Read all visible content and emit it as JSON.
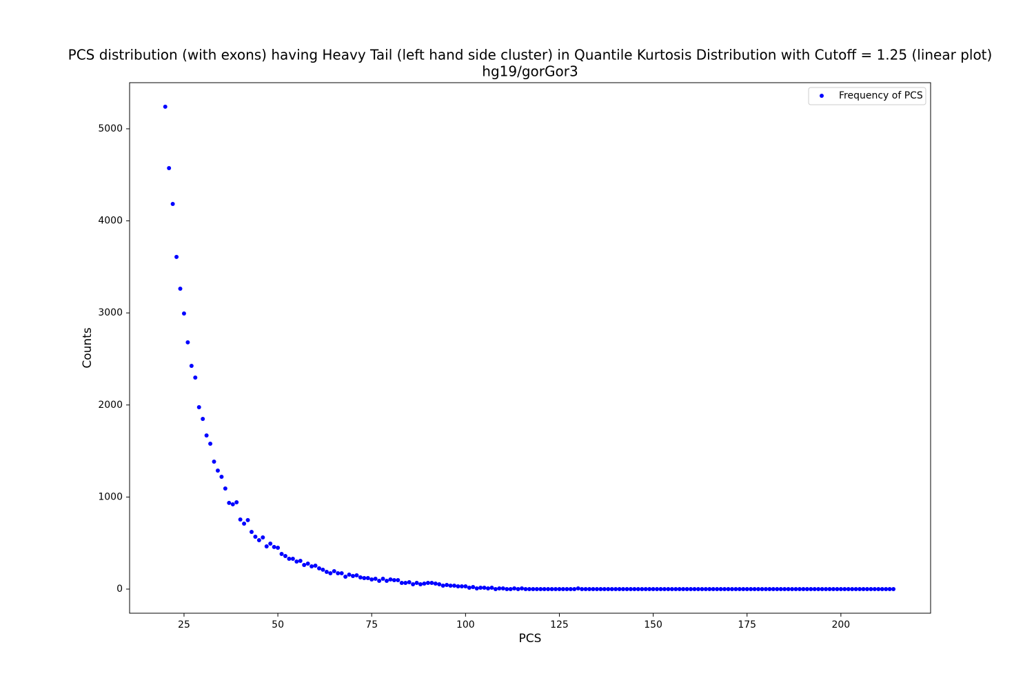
{
  "chart_data": {
    "type": "scatter",
    "title": "PCS distribution (with exons) having Heavy Tail (left hand side cluster) in Quantile Kurtosis Distribution with Cutoff = 1.25 (linear plot)",
    "subtitle": "hg19/gorGor3",
    "x_label": "PCS",
    "y_label": "Counts",
    "legend": "upper right",
    "series": [
      {
        "name": "Frequency of PCS",
        "color": "#0000ff",
        "x": [
          20,
          21,
          22,
          23,
          24,
          25,
          26,
          27,
          28,
          29,
          30,
          31,
          32,
          33,
          34,
          35,
          36,
          37,
          38,
          39,
          40,
          41,
          42,
          43,
          44,
          45,
          46,
          47,
          48,
          49,
          50,
          51,
          52,
          53,
          54,
          55,
          56,
          57,
          58,
          59,
          60,
          61,
          62,
          63,
          64,
          65,
          66,
          67,
          68,
          69,
          70,
          71,
          72,
          73,
          74,
          75,
          76,
          77,
          78,
          79,
          80,
          81,
          82,
          83,
          84,
          85,
          86,
          87,
          88,
          89,
          90,
          91,
          92,
          93,
          94,
          95,
          96,
          97,
          98,
          99,
          100,
          101,
          102,
          103,
          104,
          105,
          106,
          107,
          108,
          109,
          110,
          111,
          112,
          113,
          114,
          115,
          116,
          117,
          118,
          119,
          120,
          121,
          122,
          123,
          124,
          125,
          126,
          127,
          128,
          129,
          130,
          131,
          132,
          133,
          134,
          135,
          136,
          137,
          138,
          139,
          140,
          141,
          142,
          143,
          144,
          145,
          146,
          147,
          148,
          149,
          150,
          151,
          152,
          153,
          154,
          155,
          156,
          157,
          158,
          159,
          160,
          161,
          162,
          163,
          164,
          165,
          166,
          167,
          168,
          169,
          170,
          171,
          172,
          173,
          174,
          175,
          176,
          177,
          178,
          179,
          180,
          181,
          182,
          183,
          184,
          185,
          186,
          187,
          188,
          189,
          190,
          191,
          192,
          193,
          194,
          195,
          196,
          197,
          198,
          199,
          200,
          201,
          202,
          203,
          204,
          205,
          206,
          207,
          208,
          209,
          210,
          211,
          212,
          213,
          214
        ],
        "values": [
          5240,
          4573,
          4184,
          3608,
          3263,
          2994,
          2680,
          2425,
          2298,
          1976,
          1849,
          1669,
          1579,
          1385,
          1287,
          1220,
          1093,
          936,
          921,
          943,
          756,
          711,
          749,
          621,
          569,
          531,
          561,
          464,
          494,
          457,
          449,
          382,
          359,
          329,
          329,
          299,
          307,
          262,
          277,
          247,
          254,
          225,
          210,
          187,
          172,
          195,
          172,
          172,
          135,
          157,
          142,
          150,
          127,
          120,
          120,
          105,
          112,
          90,
          112,
          90,
          105,
          97,
          97,
          67,
          67,
          75,
          52,
          67,
          52,
          60,
          67,
          67,
          60,
          52,
          37,
          45,
          37,
          37,
          30,
          30,
          30,
          15,
          22,
          7,
          15,
          15,
          7,
          15,
          0,
          7,
          7,
          0,
          0,
          7,
          0,
          7,
          0,
          0,
          0,
          0,
          0,
          0,
          0,
          0,
          0,
          0,
          0,
          0,
          0,
          0,
          7,
          0,
          0,
          0,
          0,
          0,
          0,
          0,
          0,
          0,
          0,
          0,
          0,
          0,
          0,
          0,
          0,
          0,
          0,
          0,
          0,
          0,
          0,
          0,
          0,
          0,
          0,
          0,
          0,
          0,
          0,
          0,
          0,
          0,
          0,
          0,
          0,
          0,
          0,
          0,
          0,
          0,
          0,
          0,
          0,
          0,
          0,
          0,
          0,
          0,
          0,
          0,
          0,
          0,
          0,
          0,
          0,
          0,
          0,
          0,
          0,
          0,
          0,
          0,
          0,
          0,
          0,
          0,
          0,
          0,
          0,
          0,
          0,
          0,
          0,
          0,
          0,
          0,
          0,
          0,
          0,
          0,
          0,
          0,
          0
        ]
      }
    ],
    "xlim": [
      10.5,
      223.9
    ],
    "ylim": [
      -262,
      5501
    ],
    "xticks": [
      25,
      50,
      75,
      100,
      125,
      150,
      175,
      200
    ],
    "yticks": [
      0,
      1000,
      2000,
      3000,
      4000,
      5000
    ]
  }
}
